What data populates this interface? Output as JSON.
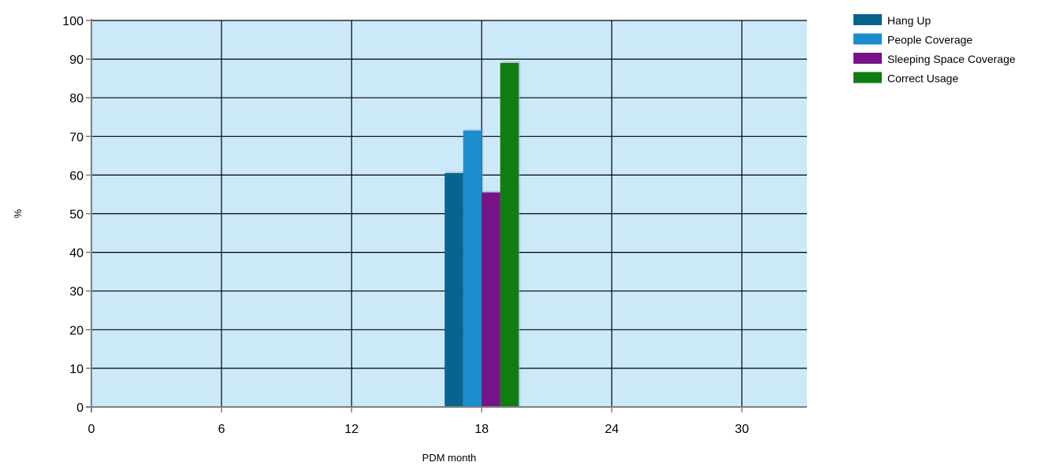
{
  "chart_data": {
    "type": "bar",
    "title": "",
    "xlabel": "PDM month",
    "ylabel": "%",
    "xlim": [
      0,
      33
    ],
    "ylim": [
      0,
      100
    ],
    "x_ticks": [
      0,
      6,
      12,
      18,
      24,
      30
    ],
    "y_ticks": [
      0,
      10,
      20,
      30,
      40,
      50,
      60,
      70,
      80,
      90,
      100
    ],
    "grid": true,
    "legend_position": "top-right",
    "plot_background": "#cce9fa",
    "grid_color": "#000000",
    "categories": [
      18
    ],
    "series": [
      {
        "name": "Hang Up",
        "color": "#08638f",
        "values": [
          60.5
        ]
      },
      {
        "name": "People Coverage",
        "color": "#1b8dce",
        "values": [
          71.5
        ]
      },
      {
        "name": "Sleeping Space Coverage",
        "color": "#761487",
        "values": [
          55.5
        ]
      },
      {
        "name": "Correct Usage",
        "color": "#0f7d0f",
        "values": [
          89
        ]
      }
    ]
  }
}
